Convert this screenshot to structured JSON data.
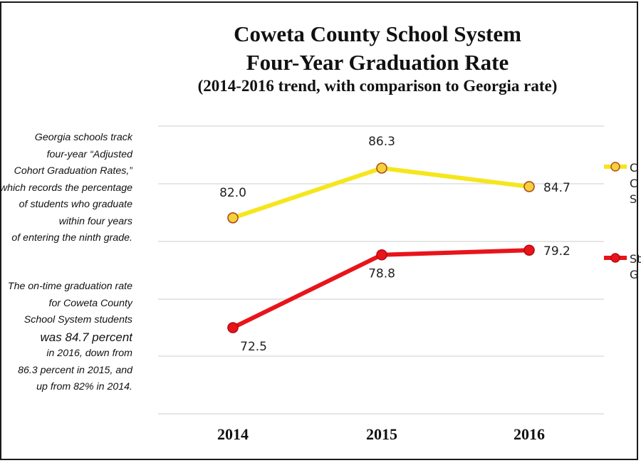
{
  "chart_data": {
    "type": "line",
    "title": "Coweta County School System",
    "title_line2": "Four-Year Graduation Rate",
    "subtitle": "(2014-2016 trend, with comparison to Georgia rate)",
    "categories": [
      "2014",
      "2015",
      "2016"
    ],
    "series": [
      {
        "name_fragments": [
          "C",
          "C",
          "S"
        ],
        "values": [
          82.0,
          86.3,
          84.7
        ],
        "labels": [
          "82.0",
          "86.3",
          "84.7"
        ],
        "color": "#f5e61e",
        "marker_color": "#f2d23a"
      },
      {
        "name_fragments": [
          "St",
          "G"
        ],
        "values": [
          72.5,
          78.8,
          79.2
        ],
        "labels": [
          "72.5",
          "78.8",
          "79.2"
        ],
        "color": "#e8141a",
        "marker_color": "#e8141a"
      }
    ],
    "ylim": [
      68,
      90
    ],
    "grid": true,
    "legend_position": "right"
  },
  "notes": {
    "left1": [
      "Georgia schools track",
      "four-year “Adjusted",
      "Cohort Graduation Rates,”",
      "which records the percentage",
      "of students who graduate",
      "within four years",
      "of entering the ninth grade."
    ],
    "left2": [
      "The on-time graduation rate",
      "for Coweta County",
      "School System students",
      "was 84.7 percent",
      "in 2016, down from",
      "86.3 percent in 2015, and",
      "up from 82% in 2014."
    ]
  }
}
